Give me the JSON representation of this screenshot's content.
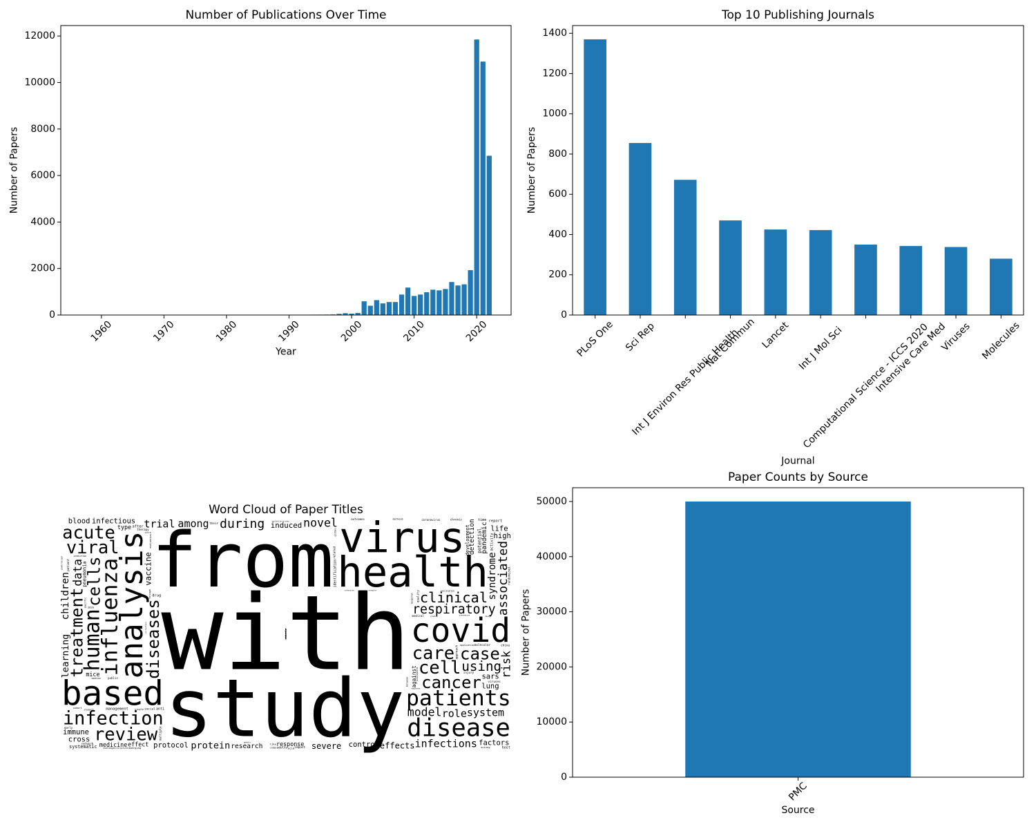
{
  "chart_data": [
    {
      "type": "bar",
      "title": "Number of Publications Over Time",
      "xlabel": "Year",
      "ylabel": "Number of Papers",
      "x": [
        1974,
        1975,
        1976,
        1977,
        1978,
        1979,
        1981,
        1982,
        1984,
        1985,
        1986,
        1987,
        1988,
        1989,
        1990,
        1991,
        1992,
        1993,
        1994,
        1995,
        1996,
        1997,
        1998,
        1999,
        2000,
        2001,
        2002,
        2003,
        2004,
        2005,
        2006,
        2007,
        2008,
        2009,
        2010,
        2011,
        2012,
        2013,
        2014,
        2015,
        2016,
        2017,
        2018,
        2019,
        2020,
        2021,
        2022
      ],
      "values": [
        8,
        10,
        8,
        12,
        10,
        8,
        10,
        12,
        8,
        10,
        12,
        10,
        12,
        14,
        15,
        12,
        14,
        15,
        16,
        18,
        20,
        25,
        50,
        80,
        60,
        90,
        590,
        400,
        640,
        500,
        560,
        560,
        880,
        1180,
        820,
        880,
        980,
        1090,
        1060,
        1120,
        1420,
        1270,
        1320,
        1930,
        11850,
        10900,
        6850
      ],
      "color": "#1f77b4",
      "bar_width": 0.8,
      "xtick_rotation": 45,
      "xlim": [
        1953.5,
        2025.5
      ],
      "xticks": [
        1960,
        1970,
        1980,
        1990,
        2000,
        2010,
        2020
      ],
      "ylim": [
        0,
        12450
      ],
      "yticks": [
        0,
        2000,
        4000,
        6000,
        8000,
        10000,
        12000
      ]
    },
    {
      "type": "bar",
      "title": "Top 10 Publishing Journals",
      "xlabel": "Journal",
      "ylabel": "Number of Papers",
      "categories": [
        "PLoS One",
        "Sci Rep",
        "Int J Environ Res Public Health",
        "Nat Commun",
        "Lancet",
        "Int J Mol Sci",
        "Computational Science - ICCS 2020",
        "Intensive Care Med",
        "Viruses",
        "Molecules"
      ],
      "values": [
        1370,
        855,
        672,
        470,
        425,
        422,
        350,
        343,
        338,
        280
      ],
      "color": "#1f77b4",
      "bar_width": 0.5,
      "xtick_rotation": 45,
      "ylim": [
        0,
        1438.5
      ],
      "yticks": [
        0,
        200,
        400,
        600,
        800,
        1000,
        1200,
        1400
      ]
    },
    {
      "type": "wordcloud",
      "title": "Word Cloud of Paper Titles",
      "colors": [
        "#440154",
        "#46327e",
        "#365c8d",
        "#277f8e",
        "#1fa187",
        "#4ac16d",
        "#a0da39",
        "#fde725"
      ],
      "words": [
        {
          "text": "with",
          "weight": 1.0
        },
        {
          "text": "study",
          "weight": 0.77
        },
        {
          "text": "from",
          "weight": 0.73
        },
        {
          "text": "health",
          "weight": 0.63
        },
        {
          "text": "virus",
          "weight": 0.63
        },
        {
          "text": "patients",
          "weight": 0.41
        },
        {
          "text": "based",
          "weight": 0.41
        },
        {
          "text": "covid",
          "weight": 0.4
        },
        {
          "text": "disease",
          "weight": 0.37
        },
        {
          "text": "analysis",
          "weight": 0.37,
          "vertical": true
        },
        {
          "text": "infection",
          "weight": 0.35
        },
        {
          "text": "influenza",
          "weight": 0.21,
          "vertical": true
        },
        {
          "text": "human",
          "weight": 0.2,
          "vertical": true
        },
        {
          "text": "respiratory",
          "weight": 0.19
        },
        {
          "text": "care",
          "weight": 0.17
        },
        {
          "text": "cell",
          "weight": 0.17
        },
        {
          "text": "review",
          "weight": 0.17
        },
        {
          "text": "viral",
          "weight": 0.17
        },
        {
          "text": "acute",
          "weight": 0.17
        },
        {
          "text": "clinical",
          "weight": 0.17
        },
        {
          "text": "cancer",
          "weight": 0.16
        },
        {
          "text": "case",
          "weight": 0.16
        },
        {
          "text": "using",
          "weight": 0.16
        },
        {
          "text": "treatment",
          "weight": 0.16,
          "vertical": true
        },
        {
          "text": "diseases",
          "weight": 0.16,
          "vertical": true
        },
        {
          "text": "cells",
          "weight": 0.16,
          "vertical": true
        },
        {
          "text": "during",
          "weight": 0.15
        },
        {
          "text": "associated",
          "weight": 0.15,
          "vertical": true
        },
        {
          "text": "children",
          "weight": 0.12,
          "vertical": true
        },
        {
          "text": "syndrome",
          "weight": 0.12,
          "vertical": true
        },
        {
          "text": "vaccine",
          "weight": 0.12,
          "vertical": true
        },
        {
          "text": "learning",
          "weight": 0.11,
          "vertical": true
        },
        {
          "text": "risk",
          "weight": 0.11,
          "vertical": true
        },
        {
          "text": "model",
          "weight": 0.11
        },
        {
          "text": "development",
          "weight": 0.11,
          "vertical": true
        },
        {
          "text": "data",
          "weight": 0.11,
          "vertical": true
        },
        {
          "text": "novel",
          "weight": 0.11
        },
        {
          "text": "role",
          "weight": 0.1
        },
        {
          "text": "among",
          "weight": 0.1
        },
        {
          "text": "infections",
          "weight": 0.1
        },
        {
          "text": "system",
          "weight": 0.1
        },
        {
          "text": "trial",
          "weight": 0.1
        },
        {
          "text": "detection",
          "weight": 0.1,
          "vertical": true
        },
        {
          "text": "pandemic",
          "weight": 0.1,
          "vertical": true
        },
        {
          "text": "against",
          "weight": 0.1,
          "vertical": true
        },
        {
          "text": "protein",
          "weight": 0.09
        },
        {
          "text": "induced",
          "weight": 0.09
        },
        {
          "text": "pneumonia",
          "weight": 0.09,
          "vertical": true
        },
        {
          "text": "identification",
          "weight": 0.08,
          "vertical": true
        },
        {
          "text": "severe",
          "weight": 0.08
        },
        {
          "text": "effects",
          "weight": 0.08
        },
        {
          "text": "research",
          "weight": 0.08
        },
        {
          "text": "infectious",
          "weight": 0.07
        },
        {
          "text": "protocol",
          "weight": 0.07
        },
        {
          "text": "response",
          "weight": 0.07
        },
        {
          "text": "control",
          "weight": 0.07
        },
        {
          "text": "sars",
          "weight": 0.07
        },
        {
          "text": "factors",
          "weight": 0.07
        },
        {
          "text": "immune",
          "weight": 0.07
        },
        {
          "text": "lung",
          "weight": 0.07
        },
        {
          "text": "high",
          "weight": 0.07
        },
        {
          "text": "cross",
          "weight": 0.07
        },
        {
          "text": "effect",
          "weight": 0.07
        },
        {
          "text": "life",
          "weight": 0.07
        },
        {
          "text": "medicine",
          "weight": 0.07
        },
        {
          "text": "blood",
          "weight": 0.07
        },
        {
          "text": "systematic",
          "weight": 0.07
        },
        {
          "text": "potential",
          "weight": 0.07,
          "vertical": true
        },
        {
          "text": "activity",
          "weight": 0.07,
          "vertical": true
        },
        {
          "text": "randomized",
          "weight": 0.07,
          "vertical": true
        },
        {
          "text": "approach",
          "weight": 0.07,
          "vertical": true
        },
        {
          "text": "quality",
          "weight": 0.07,
          "vertical": true
        },
        {
          "text": "assessment",
          "weight": 0.07,
          "vertical": true
        },
        {
          "text": "related",
          "weight": 0.07,
          "vertical": true
        },
        {
          "text": "multiple",
          "weight": 0.07,
          "vertical": true
        },
        {
          "text": "evaluation",
          "weight": 0.07,
          "vertical": true
        },
        {
          "text": "patient",
          "weight": 0.07,
          "vertical": true
        },
        {
          "text": "hospital",
          "weight": 0.07,
          "vertical": true
        },
        {
          "text": "mice",
          "weight": 0.07
        },
        {
          "text": "type",
          "weight": 0.07
        },
        {
          "text": "management",
          "weight": 0.07
        },
        {
          "text": "report",
          "weight": 0.07
        },
        {
          "text": "molecular",
          "weight": 0.07
        },
        {
          "text": "after",
          "weight": 0.07
        },
        {
          "text": "drug",
          "weight": 0.07
        },
        {
          "text": "injury",
          "weight": 0.07
        },
        {
          "text": "social",
          "weight": 0.07
        },
        {
          "text": "impact",
          "weight": 0.07
        },
        {
          "text": "china",
          "weight": 0.07
        },
        {
          "text": "adults",
          "weight": 0.07
        },
        {
          "text": "their",
          "weight": 0.07
        },
        {
          "text": "viruses",
          "weight": 0.07
        },
        {
          "text": "anti",
          "weight": 0.067
        },
        {
          "text": "medical",
          "weight": 0.067
        },
        {
          "text": "time",
          "weight": 0.067
        },
        {
          "text": "between",
          "weight": 0.067,
          "vertical": true
        },
        {
          "text": "controlled",
          "weight": 0.067,
          "vertical": true
        },
        {
          "text": "expression",
          "weight": 0.067,
          "vertical": true
        },
        {
          "text": "pulmonary",
          "weight": 0.067,
          "vertical": true
        },
        {
          "text": "through",
          "weight": 0.067,
          "vertical": true
        },
        {
          "text": "association",
          "weight": 0.067,
          "vertical": true
        },
        {
          "text": "specific",
          "weight": 0.067,
          "vertical": true
        },
        {
          "text": "diagnosis",
          "weight": 0.067,
          "vertical": true
        },
        {
          "text": "community",
          "weight": 0.067,
          "vertical": true
        },
        {
          "text": "abstracts",
          "weight": 0.067,
          "vertical": true
        },
        {
          "text": "global",
          "weight": 0.067,
          "vertical": true
        },
        {
          "text": "public",
          "weight": 0.067
        },
        {
          "text": "outcomes",
          "weight": 0.067
        },
        {
          "text": "therapy",
          "weight": 0.067
        },
        {
          "text": "coronavirus",
          "weight": 0.067
        },
        {
          "text": "host",
          "weight": 0.067
        },
        {
          "text": "chronic",
          "weight": 0.067
        },
        {
          "text": "early",
          "weight": 0.067
        },
        {
          "text": "network",
          "weight": 0.067
        },
        {
          "text": "correction",
          "weight": 0.06,
          "vertical": true
        },
        {
          "text": "2020",
          "weight": 0.06
        },
        {
          "text": "single",
          "weight": 0.047
        },
        {
          "text": "methods",
          "weight": 0.047
        },
        {
          "text": "cohort",
          "weight": 0.047
        },
        {
          "text": "vaccination",
          "weight": 0.04
        },
        {
          "text": "like",
          "weight": 0.04
        },
        {
          "text": "emerging",
          "weight": 0.04
        },
        {
          "text": "survey",
          "weight": 0.04
        },
        {
          "text": "application",
          "weight": 0.04
        },
        {
          "text": "machine",
          "weight": 0.04
        },
        {
          "text": "students",
          "weight": 0.04
        },
        {
          "text": "prediction",
          "weight": 0.04
        },
        {
          "text": "structure",
          "weight": 0.04
        },
        {
          "text": "challenges",
          "weight": 0.04
        },
        {
          "text": "intensive",
          "weight": 0.04
        },
        {
          "text": "receptor",
          "weight": 0.04
        },
        {
          "text": "acid",
          "weight": 0.04
        },
        {
          "text": "studies",
          "weight": 0.04
        },
        {
          "text": "responses",
          "weight": 0.04
        },
        {
          "text": "prevention",
          "weight": 0.04
        },
        {
          "text": "design",
          "weight": 0.04
        },
        {
          "text": "genetic",
          "weight": 0.04
        },
        {
          "text": "index",
          "weight": 0.04
        },
        {
          "text": "mortality",
          "weight": 0.04
        },
        {
          "text": "vitro",
          "weight": 0.04
        },
        {
          "text": "society",
          "weight": 0.04
        }
      ]
    },
    {
      "type": "bar",
      "title": "Paper Counts by Source",
      "xlabel": "Source",
      "ylabel": "Number of Papers",
      "categories": [
        "PMC"
      ],
      "values": [
        50000
      ],
      "color": "#1f77b4",
      "bar_width": 0.5,
      "xtick_rotation": 45,
      "ylim": [
        0,
        52500
      ],
      "yticks": [
        0,
        10000,
        20000,
        30000,
        40000,
        50000
      ]
    }
  ]
}
